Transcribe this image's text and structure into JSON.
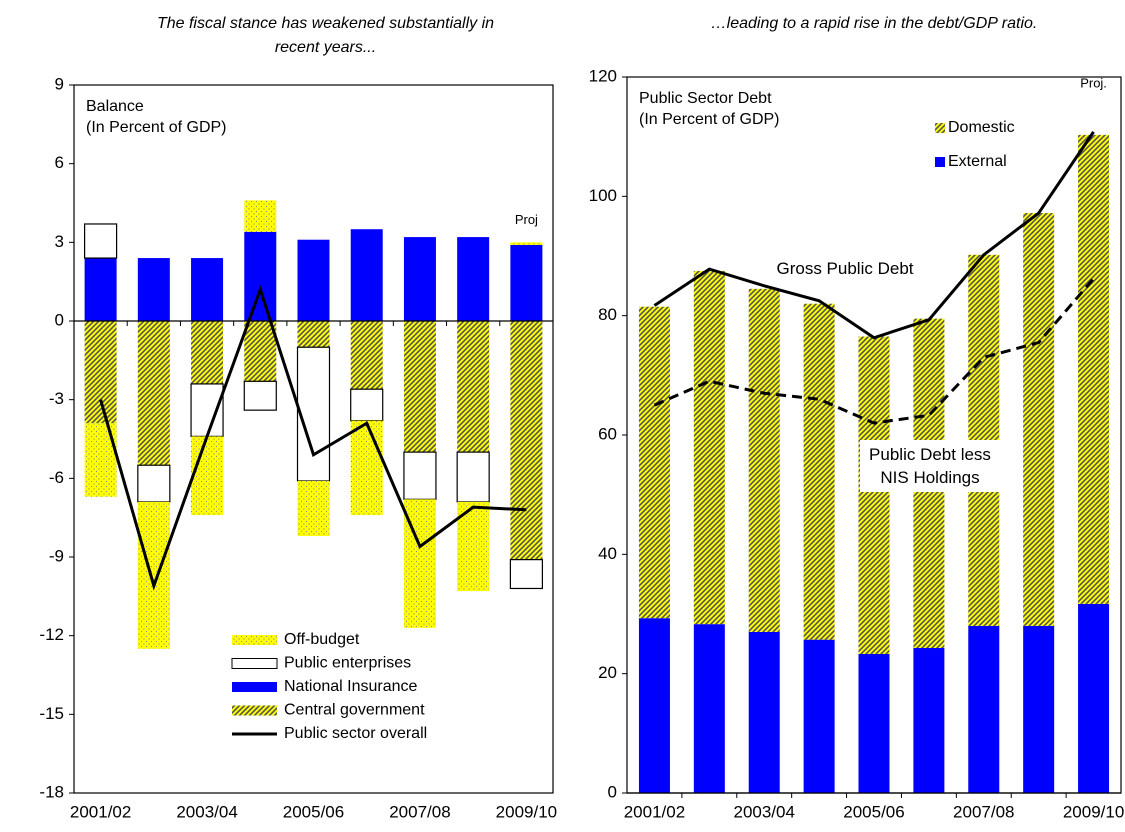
{
  "chart_data": [
    {
      "type": "bar",
      "title": [
        "The fiscal stance has weakened substantially in",
        "recent years..."
      ],
      "panel_label": [
        "Balance",
        "(In Percent of GDP)"
      ],
      "annotation": "Proj",
      "categories": [
        "2001/02",
        null,
        "2003/04",
        null,
        "2005/06",
        null,
        "2007/08",
        null,
        "2009/10"
      ],
      "series": [
        {
          "name": "Off-budget",
          "type": "bar",
          "color": "#ffff00",
          "pattern": "dots",
          "values": [
            -2.8,
            -5.6,
            -3.0,
            1.2,
            -2.1,
            -3.6,
            -4.9,
            -3.4,
            0.1
          ]
        },
        {
          "name": "Public enterprises",
          "type": "bar",
          "color": "#ffffff",
          "edgecolor": "#000000",
          "values": [
            1.3,
            -1.4,
            -2.0,
            -1.1,
            -5.1,
            -1.2,
            -1.8,
            -1.9,
            -1.1
          ]
        },
        {
          "name": "National Insurance",
          "type": "bar",
          "color": "#0000ff",
          "values": [
            2.4,
            2.4,
            2.4,
            3.4,
            3.1,
            3.5,
            3.2,
            3.2,
            2.9
          ]
        },
        {
          "name": "Central government",
          "type": "bar",
          "color": "#ffff00",
          "pattern": "hatch",
          "values": [
            -3.9,
            -5.5,
            -2.4,
            -2.3,
            -1.0,
            -2.6,
            -5.0,
            -5.0,
            -9.1
          ]
        },
        {
          "name": "Public sector overall",
          "type": "line",
          "color": "#000000",
          "linestyle": "solid",
          "values": [
            -3.0,
            -10.1,
            -4.4,
            1.2,
            -5.1,
            -3.9,
            -8.6,
            -7.1,
            -7.2
          ]
        }
      ],
      "ylim": [
        -18,
        9
      ],
      "yticks": [
        -18,
        -15,
        -12,
        -9,
        -6,
        -3,
        0,
        3,
        6,
        9
      ],
      "legend": "lower center"
    },
    {
      "type": "bar",
      "title": [
        "…leading to a rapid rise in the debt/GDP ratio."
      ],
      "panel_label": [
        "Public Sector Debt",
        "(In Percent of GDP)"
      ],
      "annotation": "Proj.",
      "categories": [
        "2001/02",
        null,
        "2003/04",
        null,
        "2005/06",
        null,
        "2007/08",
        null,
        "2009/10"
      ],
      "series": [
        {
          "name": "Domestic",
          "type": "bar",
          "color": "#ffff00",
          "pattern": "hatch",
          "values": [
            52.2,
            59.2,
            57.5,
            56.3,
            53.2,
            55.2,
            62.2,
            69.2,
            78.6
          ]
        },
        {
          "name": "External",
          "type": "bar",
          "color": "#0000ff",
          "values": [
            29.3,
            28.3,
            27.0,
            25.7,
            23.3,
            24.3,
            28.0,
            28.0,
            31.7
          ]
        },
        {
          "name": "Gross Public Debt",
          "type": "line",
          "color": "#000000",
          "linestyle": "solid",
          "inline_label": true,
          "values": [
            81.7,
            87.8,
            85.0,
            82.5,
            76.3,
            79.3,
            90.2,
            97.2,
            110.8
          ]
        },
        {
          "name": "Public Debt less NIS Holdings",
          "type": "line",
          "color": "#000000",
          "linestyle": "dashed",
          "inline_label": true,
          "values": [
            65,
            69,
            67,
            66,
            62,
            63.3,
            73,
            75.5,
            86.2
          ]
        }
      ],
      "ylim": [
        0,
        120
      ],
      "yticks": [
        0,
        20,
        40,
        60,
        80,
        100,
        120
      ],
      "legend": "upper right"
    }
  ]
}
